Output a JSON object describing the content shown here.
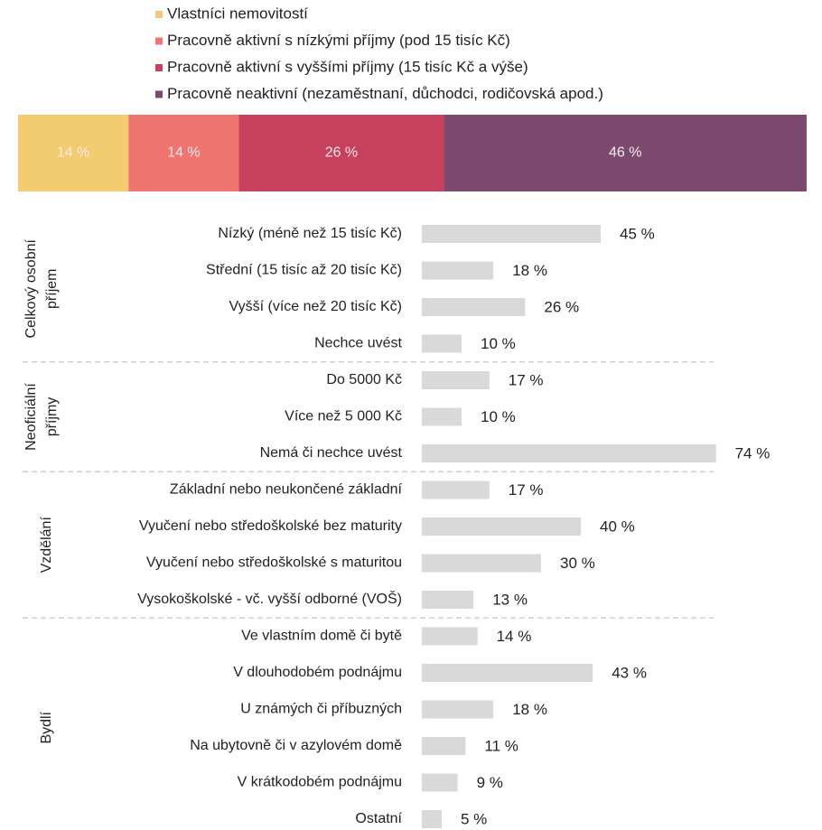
{
  "chart_data": [
    {
      "type": "stacked_bar",
      "series": [
        {
          "name": "Vlastníci nemovitostí",
          "color": "#f2cc6e",
          "values": [
            14
          ],
          "value_labels": [
            "14 %"
          ]
        },
        {
          "name": "Pracovně aktivní s nízkými příjmy (pod 15 tisíc Kč)",
          "color": "#f07470",
          "values": [
            14
          ],
          "value_labels": [
            "14 %"
          ]
        },
        {
          "name": "Pracovně aktivní s vyššími příjmy (15 tisíc Kč a výše)",
          "color": "#c7405e",
          "values": [
            26
          ],
          "value_labels": [
            "26 %"
          ]
        },
        {
          "name": "Pracovně neaktivní (nezaměstnaní, důchodci, rodičovská apod.)",
          "color": "#7b4a6e",
          "values": [
            46
          ],
          "value_labels": [
            "46 %"
          ]
        }
      ]
    },
    {
      "type": "grouped_hbar",
      "color": "#d9d9d9",
      "groups": [
        {
          "name_lines": [
            "Celkový osobní",
            "příjem"
          ],
          "categories": [
            "Nízký (méně než 15 tisíc Kč)",
            "Střední (15 tisíc až 20 tisíc Kč)",
            "Vyšší (více než 20 tisíc Kč)",
            "Nechce uvést"
          ],
          "values": [
            45,
            18,
            26,
            10
          ],
          "value_labels": [
            "45 %",
            "18 %",
            "26 %",
            "10 %"
          ]
        },
        {
          "name_lines": [
            "Neoficiální",
            "příjmy"
          ],
          "categories": [
            "Do 5000 Kč",
            "Více než 5 000 Kč",
            "Nemá či nechce uvést"
          ],
          "values": [
            17,
            10,
            74
          ],
          "value_labels": [
            "17 %",
            "10 %",
            "74 %"
          ]
        },
        {
          "name_lines": [
            "Vzdělání"
          ],
          "categories": [
            "Základní nebo neukončené základní",
            "Vyučení nebo středoškolské bez maturity",
            "Vyučení nebo středoškolské s maturitou",
            "Vysokoškolské - vč. vyšší odborné (VOŠ)"
          ],
          "values": [
            17,
            40,
            30,
            13
          ],
          "value_labels": [
            "17 %",
            "40 %",
            "30 %",
            "13 %"
          ]
        },
        {
          "name_lines": [
            "Bydlí"
          ],
          "categories": [
            "Ve vlastním domě či bytě",
            "V dlouhodobém podnájmu",
            "U známých či příbuzných",
            "Na ubytovně či v azylovém domě",
            "V krátkodobém podnájmu",
            "Ostatní"
          ],
          "values": [
            14,
            43,
            18,
            11,
            9,
            5
          ],
          "value_labels": [
            "14 %",
            "43 %",
            "18 %",
            "11 %",
            "9 %",
            "5 %"
          ]
        }
      ]
    }
  ]
}
